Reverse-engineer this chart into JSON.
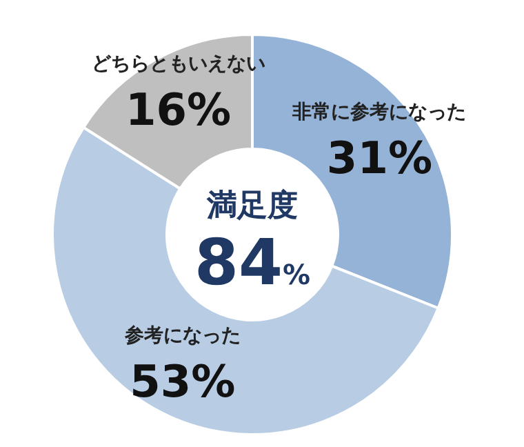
{
  "chart_data": {
    "type": "donut",
    "categories": [
      "非常に参考になった",
      "参考になった",
      "どちらともいえない"
    ],
    "values": [
      31,
      53,
      16
    ],
    "colors": [
      "#95b3d7",
      "#b8cce4",
      "#bfbfbf"
    ],
    "value_labels": [
      "31%",
      "53%",
      "16%"
    ],
    "annotations": [
      "満足度",
      "84%"
    ],
    "legend": false
  }
}
